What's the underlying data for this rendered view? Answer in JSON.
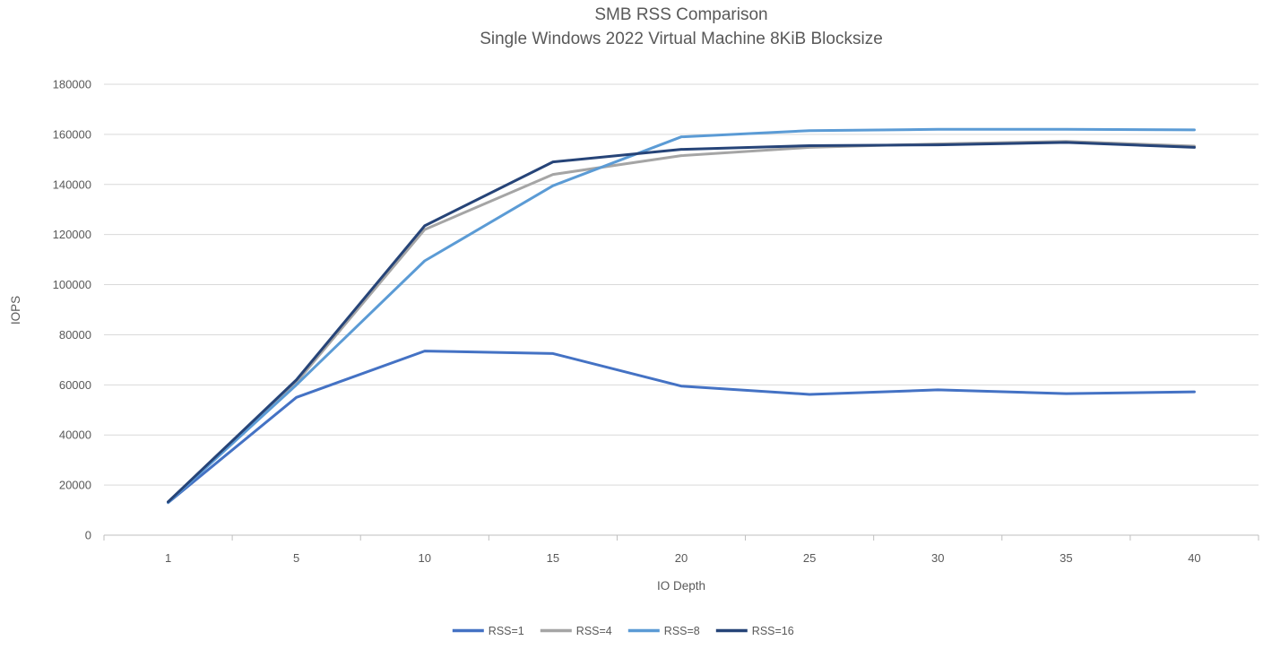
{
  "chart_data": {
    "type": "line",
    "title": "SMB RSS Comparison",
    "subtitle": "Single Windows 2022 Virtual Machine 8KiB Blocksize",
    "xlabel": "IO Depth",
    "ylabel": "IOPS",
    "categories": [
      "1",
      "5",
      "10",
      "15",
      "20",
      "25",
      "30",
      "35",
      "40"
    ],
    "series": [
      {
        "name": "RSS=1",
        "color": "#4472C4",
        "values": [
          13000,
          55000,
          73500,
          72500,
          59500,
          56200,
          58000,
          56500,
          57200
        ]
      },
      {
        "name": "RSS=4",
        "color": "#A5A5A5",
        "values": [
          13200,
          61000,
          122000,
          144000,
          151500,
          154800,
          156200,
          157200,
          155300
        ]
      },
      {
        "name": "RSS=8",
        "color": "#5B9BD5",
        "values": [
          13100,
          60000,
          109500,
          139500,
          159000,
          161500,
          162000,
          162000,
          161800
        ]
      },
      {
        "name": "RSS=16",
        "color": "#264478",
        "values": [
          13300,
          62000,
          123500,
          149000,
          154000,
          155500,
          155800,
          156800,
          154800
        ]
      }
    ],
    "ylim": [
      0,
      180000
    ],
    "ytick_step": 20000,
    "grid": true,
    "legend_position": "bottom"
  },
  "colors": {
    "text": "#595959",
    "gridline": "#D9D9D9",
    "axis": "#BFBFBF",
    "background": "#FFFFFF"
  }
}
